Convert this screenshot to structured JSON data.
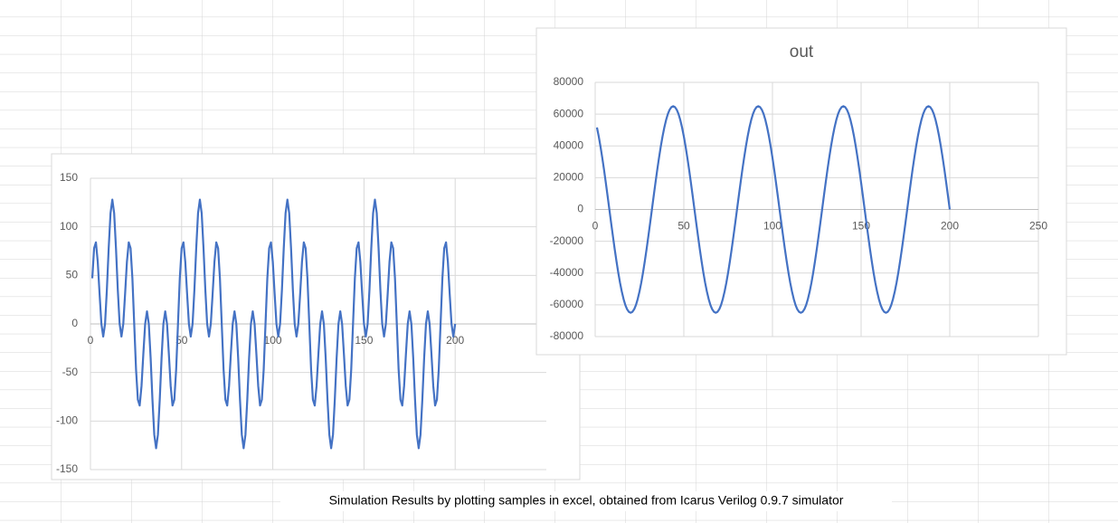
{
  "chart_data": [
    {
      "type": "line",
      "color": "#4472c4",
      "grid": true,
      "xlim": [
        0,
        250
      ],
      "xticks": [
        0,
        50,
        100,
        150,
        200
      ],
      "ylim": [
        -150,
        150
      ],
      "yticks": [
        -150,
        -100,
        -50,
        0,
        50,
        100,
        150
      ],
      "x": [
        1,
        2,
        3,
        4,
        5,
        6,
        7,
        8,
        9,
        10,
        11,
        12,
        13,
        14,
        15,
        16,
        17,
        18,
        19,
        20,
        21,
        22,
        23,
        24,
        25,
        26,
        27,
        28,
        29,
        30,
        31,
        32,
        33,
        34,
        35,
        36,
        37,
        38,
        39,
        40,
        41,
        42,
        43,
        44,
        45,
        46,
        47,
        48,
        49,
        50,
        51,
        52,
        53,
        54,
        55,
        56,
        57,
        58,
        59,
        60,
        61,
        62,
        63,
        64,
        65,
        66,
        67,
        68,
        69,
        70,
        71,
        72,
        73,
        74,
        75,
        76,
        77,
        78,
        79,
        80,
        81,
        82,
        83,
        84,
        85,
        86,
        87,
        88,
        89,
        90,
        91,
        92,
        93,
        94,
        95,
        96,
        97,
        98,
        99,
        100,
        101,
        102,
        103,
        104,
        105,
        106,
        107,
        108,
        109,
        110,
        111,
        112,
        113,
        114,
        115,
        116,
        117,
        118,
        119,
        120,
        121,
        122,
        123,
        124,
        125,
        126,
        127,
        128,
        129,
        130,
        131,
        132,
        133,
        134,
        135,
        136,
        137,
        138,
        139,
        140,
        141,
        142,
        143,
        144,
        145,
        146,
        147,
        148,
        149,
        150,
        151,
        152,
        153,
        154,
        155,
        156,
        157,
        158,
        159,
        160,
        161,
        162,
        163,
        164,
        165,
        166,
        167,
        168,
        169,
        170,
        171,
        172,
        173,
        174,
        175,
        176,
        177,
        178,
        179,
        180,
        181,
        182,
        183,
        184,
        185,
        186,
        187,
        188,
        189,
        190,
        191,
        192,
        193,
        194,
        195,
        196,
        197,
        198,
        199,
        200
      ],
      "values": [
        47,
        78,
        84,
        64,
        31,
        0,
        -13,
        0,
        35,
        78,
        114,
        128,
        114,
        78,
        35,
        0,
        -13,
        0,
        31,
        64,
        84,
        78,
        47,
        0,
        -47,
        -78,
        -84,
        -64,
        -31,
        0,
        13,
        0,
        -35,
        -78,
        -114,
        -128,
        -114,
        -78,
        -35,
        0,
        13,
        0,
        -31,
        -64,
        -84,
        -78,
        -47,
        0,
        47,
        78,
        84,
        64,
        31,
        0,
        -13,
        0,
        35,
        78,
        114,
        128,
        114,
        78,
        35,
        0,
        -13,
        0,
        31,
        64,
        84,
        78,
        47,
        0,
        -47,
        -78,
        -84,
        -64,
        -31,
        0,
        13,
        0,
        -35,
        -78,
        -114,
        -128,
        -114,
        -78,
        -35,
        0,
        13,
        0,
        -31,
        -64,
        -84,
        -78,
        -47,
        0,
        47,
        78,
        84,
        64,
        31,
        0,
        -13,
        0,
        35,
        78,
        114,
        128,
        114,
        78,
        35,
        0,
        -13,
        0,
        31,
        64,
        84,
        78,
        47,
        0,
        -47,
        -78,
        -84,
        -64,
        -31,
        0,
        13,
        0,
        -35,
        -78,
        -114,
        -128,
        -114,
        -78,
        -35,
        0,
        13,
        0,
        -31,
        -64,
        -84,
        -78,
        -47,
        0,
        47,
        78,
        84,
        64,
        31,
        0,
        -13,
        0,
        35,
        78,
        114,
        128,
        114,
        78,
        35,
        0,
        -13,
        0,
        31,
        64,
        84,
        78,
        47,
        0,
        -47,
        -78,
        -84,
        -64,
        -31,
        0,
        13,
        0,
        -35,
        -78,
        -114,
        -128,
        -114,
        -78,
        -35,
        0,
        13,
        0,
        -31,
        -64,
        -84,
        -78,
        -47,
        0,
        47,
        78,
        84,
        64,
        31,
        0,
        -13,
        0
      ]
    },
    {
      "type": "line",
      "title": "out",
      "color": "#4472c4",
      "grid": true,
      "xlim": [
        0,
        250
      ],
      "xticks": [
        0,
        50,
        100,
        150,
        200,
        250
      ],
      "ylim": [
        -80000,
        80000
      ],
      "yticks": [
        -80000,
        -60000,
        -40000,
        -20000,
        0,
        20000,
        40000,
        60000,
        80000
      ],
      "x": [
        1,
        2,
        3,
        4,
        5,
        6,
        7,
        8,
        9,
        10,
        11,
        12,
        13,
        14,
        15,
        16,
        17,
        18,
        19,
        20,
        21,
        22,
        23,
        24,
        25,
        26,
        27,
        28,
        29,
        30,
        31,
        32,
        33,
        34,
        35,
        36,
        37,
        38,
        39,
        40,
        41,
        42,
        43,
        44,
        45,
        46,
        47,
        48,
        49,
        50,
        51,
        52,
        53,
        54,
        55,
        56,
        57,
        58,
        59,
        60,
        61,
        62,
        63,
        64,
        65,
        66,
        67,
        68,
        69,
        70,
        71,
        72,
        73,
        74,
        75,
        76,
        77,
        78,
        79,
        80,
        81,
        82,
        83,
        84,
        85,
        86,
        87,
        88,
        89,
        90,
        91,
        92,
        93,
        94,
        95,
        96,
        97,
        98,
        99,
        100,
        101,
        102,
        103,
        104,
        105,
        106,
        107,
        108,
        109,
        110,
        111,
        112,
        113,
        114,
        115,
        116,
        117,
        118,
        119,
        120,
        121,
        122,
        123,
        124,
        125,
        126,
        127,
        128,
        129,
        130,
        131,
        132,
        133,
        134,
        135,
        136,
        137,
        138,
        139,
        140,
        141,
        142,
        143,
        144,
        145,
        146,
        147,
        148,
        149,
        150,
        151,
        152,
        153,
        154,
        155,
        156,
        157,
        158,
        159,
        160,
        161,
        162,
        163,
        164,
        165,
        166,
        167,
        168,
        169,
        170,
        171,
        172,
        173,
        174,
        175,
        176,
        177,
        178,
        179,
        180,
        181,
        182,
        183,
        184,
        185,
        186,
        187,
        188,
        189,
        190,
        191,
        192,
        193,
        194,
        195,
        196,
        197,
        198,
        199,
        200
      ],
      "values": [
        51600,
        46000,
        39600,
        32500,
        24900,
        16800,
        8500,
        0,
        -8500,
        -16800,
        -24900,
        -32500,
        -39600,
        -46000,
        -51600,
        -56300,
        -60100,
        -62800,
        -64400,
        -65000,
        -64400,
        -62800,
        -60100,
        -56300,
        -51600,
        -46000,
        -39600,
        -32500,
        -24900,
        -16800,
        -8500,
        0,
        8500,
        16800,
        24900,
        32500,
        39600,
        46000,
        51600,
        56300,
        60100,
        62800,
        64400,
        65000,
        64400,
        62800,
        60100,
        56300,
        51600,
        46000,
        39600,
        32500,
        24900,
        16800,
        8500,
        0,
        -8500,
        -16800,
        -24900,
        -32500,
        -39600,
        -46000,
        -51600,
        -56300,
        -60100,
        -62800,
        -64400,
        -65000,
        -64400,
        -62800,
        -60100,
        -56300,
        -51600,
        -46000,
        -39600,
        -32500,
        -24900,
        -16800,
        -8500,
        0,
        8500,
        16800,
        24900,
        32500,
        39600,
        46000,
        51600,
        56300,
        60100,
        62800,
        64400,
        65000,
        64400,
        62800,
        60100,
        56300,
        51600,
        46000,
        39600,
        32500,
        24900,
        16800,
        8500,
        0,
        -8500,
        -16800,
        -24900,
        -32500,
        -39600,
        -46000,
        -51600,
        -56300,
        -60100,
        -62800,
        -64400,
        -65000,
        -64400,
        -62800,
        -60100,
        -56300,
        -51600,
        -46000,
        -39600,
        -32500,
        -24900,
        -16800,
        -8500,
        0,
        8500,
        16800,
        24900,
        32500,
        39600,
        46000,
        51600,
        56300,
        60100,
        62800,
        64400,
        65000,
        64400,
        62800,
        60100,
        56300,
        51600,
        46000,
        39600,
        32500,
        24900,
        16800,
        8500,
        0,
        -8500,
        -16800,
        -24900,
        -32500,
        -39600,
        -46000,
        -51600,
        -56300,
        -60100,
        -62800,
        -64400,
        -65000,
        -64400,
        -62800,
        -60100,
        -56300,
        -51600,
        -46000,
        -39600,
        -32500,
        -24900,
        -16800,
        -8500,
        0,
        8500,
        16800,
        24900,
        32500,
        39600,
        46000,
        51600,
        56300,
        60100,
        62800,
        64400,
        65000,
        64400,
        62800,
        60100,
        56300,
        51600,
        46000,
        39600,
        32500,
        24900,
        16800,
        8500,
        0
      ]
    }
  ],
  "caption": "Simulation Results by plotting samples in excel, obtained from Icarus Verilog 0.9.7 simulator"
}
